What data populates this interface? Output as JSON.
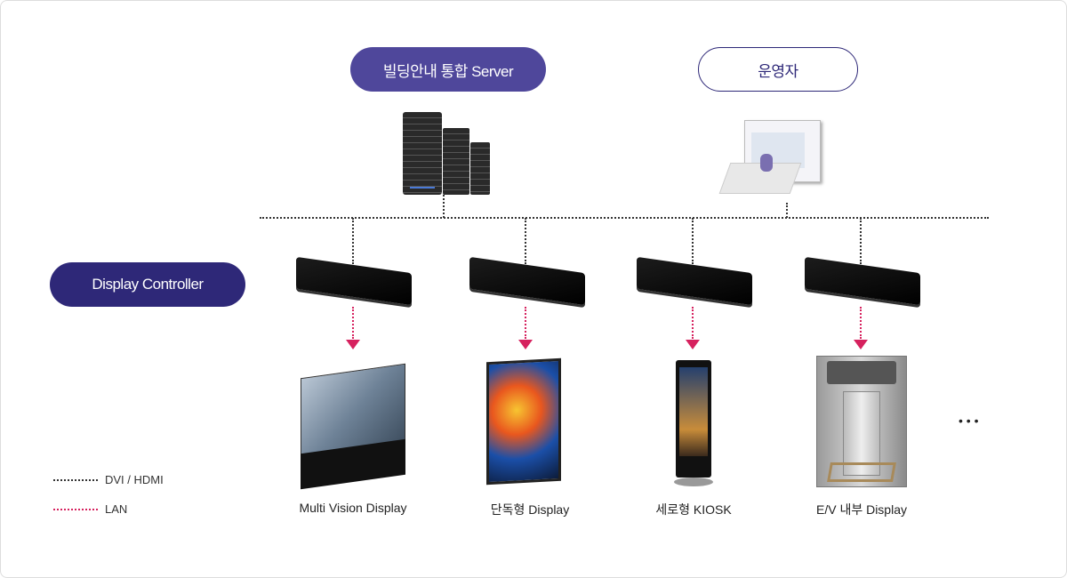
{
  "nodes": {
    "server": "빌딩안내 통합 Server",
    "operator": "운영자",
    "controller": "Display Controller"
  },
  "displays": [
    {
      "label": "Multi Vision Display"
    },
    {
      "label": "단독형 Display"
    },
    {
      "label": "세로형 KIOSK"
    },
    {
      "label": "E/V 내부 Display"
    }
  ],
  "more": "• • •",
  "legend": [
    {
      "label": "DVI / HDMI",
      "color": "#333333"
    },
    {
      "label": "LAN",
      "color": "#d6215e"
    }
  ],
  "colors": {
    "server_pill": "#4f479b",
    "controller_pill": "#2e2878",
    "operator_border": "#2e2878",
    "lan": "#d6215e"
  }
}
